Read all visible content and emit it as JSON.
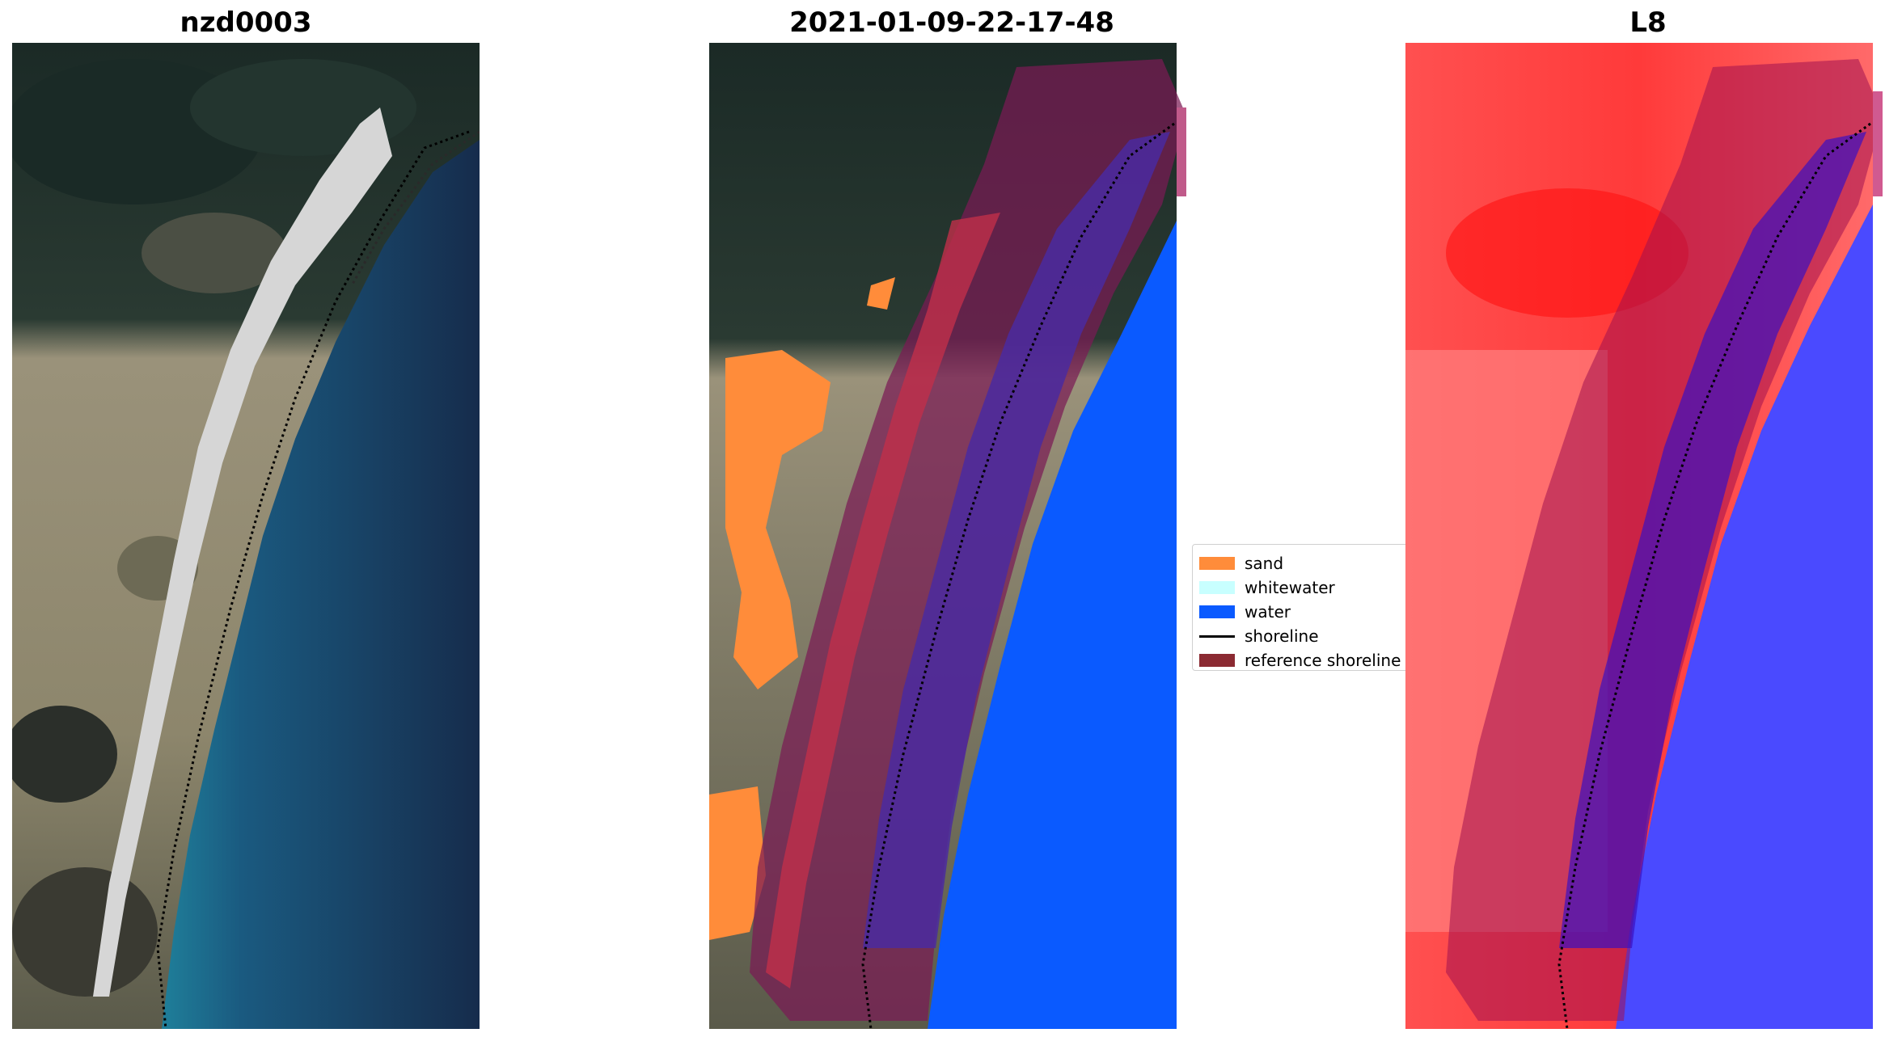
{
  "panels": {
    "rgb": {
      "title": "nzd0003"
    },
    "classification": {
      "title": "2021-01-09-22-17-48"
    },
    "index": {
      "title": "L8"
    }
  },
  "legend": {
    "items": [
      {
        "label": "sand",
        "color": "#ff8c3a",
        "kind": "patch"
      },
      {
        "label": "whitewater",
        "color": "#c8ffff",
        "kind": "patch"
      },
      {
        "label": "water",
        "color": "#0a5aff",
        "kind": "patch"
      },
      {
        "label": "shoreline",
        "color": "#000000",
        "kind": "line"
      },
      {
        "label": "reference shoreline",
        "color": "#8b2a32",
        "kind": "patch"
      }
    ]
  },
  "colors": {
    "forest": "#1c2e2a",
    "dune_scrub": "#8f8a6e",
    "beach_sand": "#d8d8d8",
    "ocean_shallow": "#1d6a88",
    "ocean_deep": "#17304f",
    "buffer_overlay": "#7a1a55",
    "index_red": "#ff3a3a",
    "index_blue": "#4a4aff"
  }
}
